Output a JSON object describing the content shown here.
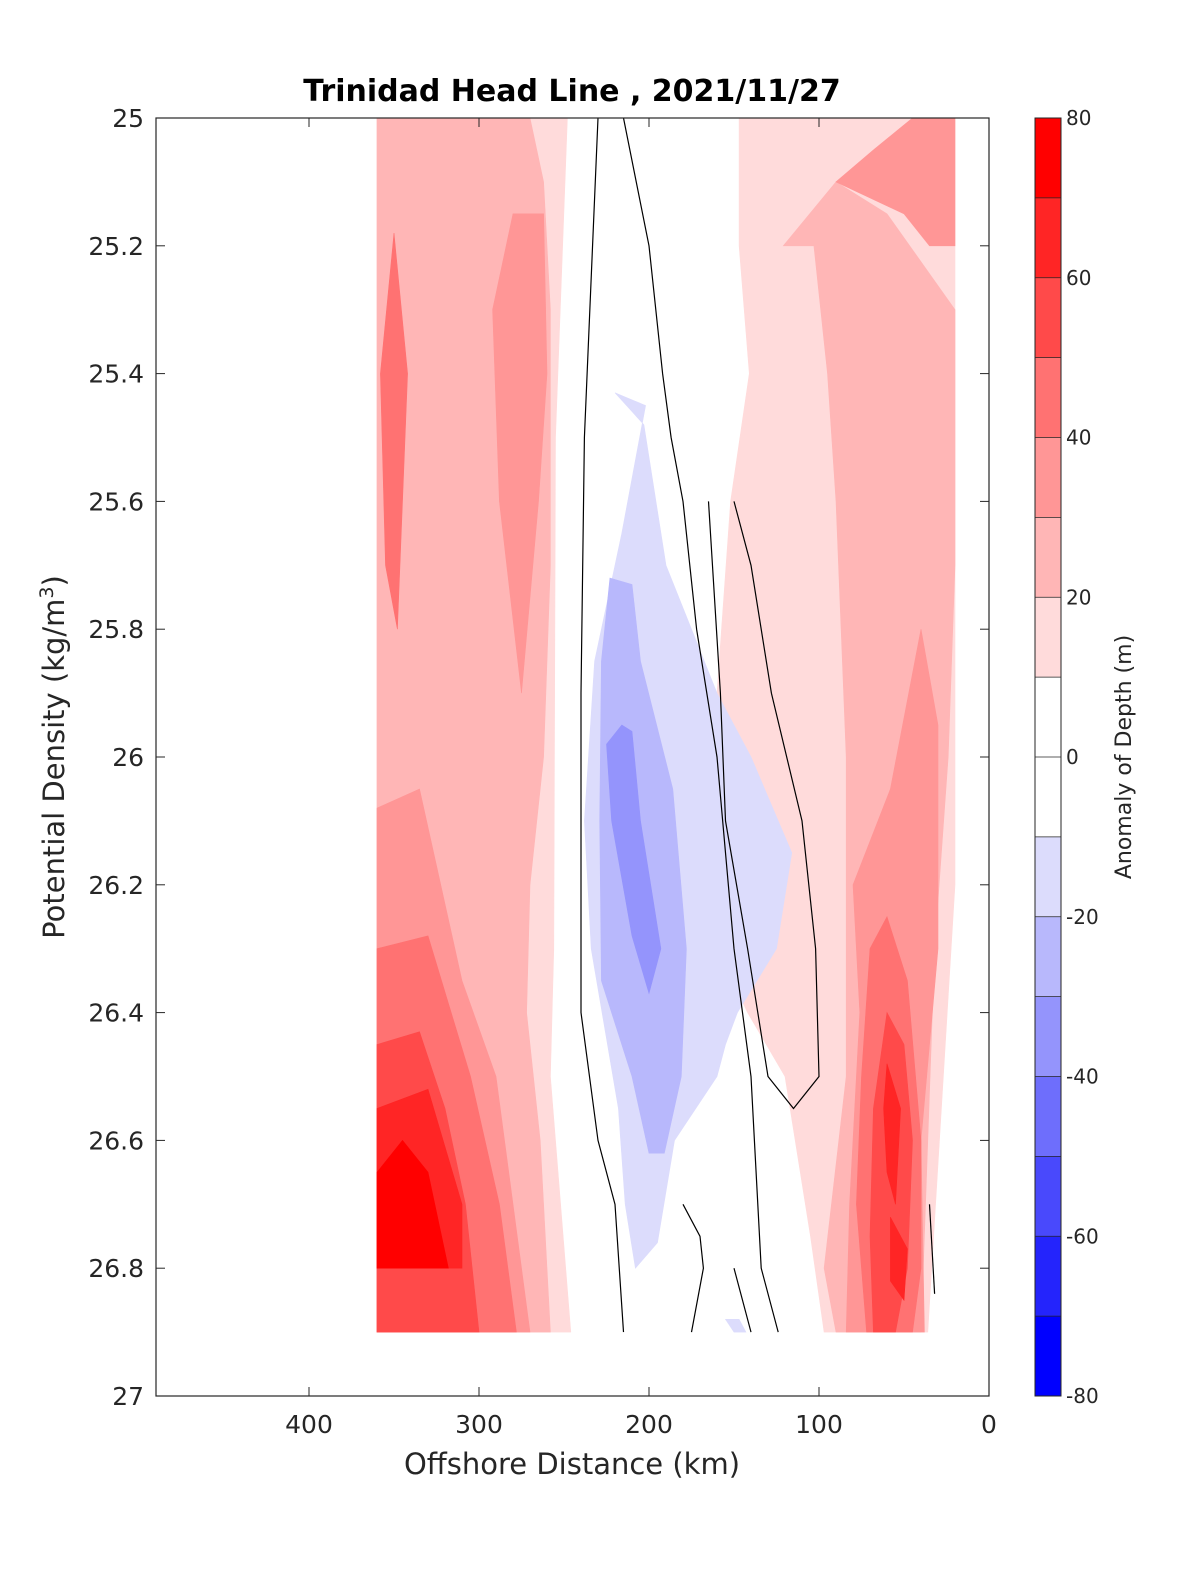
{
  "chart_data": {
    "type": "contour",
    "title": "Trinidad Head Line , 2021/11/27",
    "xlabel": "Offshore Distance (km)",
    "ylabel": "Potential Density (kg/m3)",
    "ylabel_parts": {
      "base": "Potential Density (kg/m",
      "sup": "3",
      "close": ")"
    },
    "xlim": [
      490,
      0
    ],
    "ylim": [
      25,
      27
    ],
    "x_reversed": true,
    "y_reversed": true,
    "x_ticks": [
      400,
      300,
      200,
      100,
      0
    ],
    "x_tick_labels": [
      "400",
      "300",
      "200",
      "100",
      "0"
    ],
    "y_ticks": [
      25,
      25.2,
      25.4,
      25.6,
      25.8,
      26,
      26.2,
      26.4,
      26.6,
      26.8,
      27
    ],
    "y_tick_labels": [
      "25",
      "25.2",
      "25.4",
      "25.6",
      "25.8",
      "26",
      "26.2",
      "26.4",
      "26.6",
      "26.8",
      "27"
    ],
    "grid": false,
    "data_extent": {
      "x": [
        360,
        20
      ],
      "y": [
        25,
        26.9
      ]
    },
    "colorbar": {
      "label": "Anomaly of Depth (m)",
      "range": [
        -80,
        80
      ],
      "step": 10,
      "tick_values": [
        80,
        60,
        40,
        20,
        0,
        -20,
        -40,
        -60,
        -80
      ],
      "tick_labels": [
        "80",
        "60",
        "40",
        "20",
        "0",
        "-20",
        "-40",
        "-60",
        "-80"
      ],
      "colors": [
        "#ff0000",
        "#ff2525",
        "#ff4a4a",
        "#ff7272",
        "#ff9696",
        "#ffb6b6",
        "#ffdbdb",
        "#ffffff",
        "#ffffff",
        "#dcdcfc",
        "#b8b8fc",
        "#9494fc",
        "#6e6efc",
        "#4949fc",
        "#2424fc",
        "#0000ff"
      ]
    },
    "contour_levels": [
      {
        "level": 10,
        "color": "#ffdbdb",
        "regions": [
          [
            [
              360,
              25
            ],
            [
              248,
              25
            ],
            [
              255,
              25.5
            ],
            [
              256,
              26.3
            ],
            [
              258,
              26.5
            ],
            [
              246,
              26.9
            ],
            [
              360,
              26.9
            ]
          ],
          [
            [
              147,
              25
            ],
            [
              20,
              25
            ],
            [
              20,
              26.2
            ],
            [
              36,
              26.9
            ],
            [
              97,
              26.9
            ],
            [
              105,
              26.75
            ],
            [
              120,
              26.5
            ],
            [
              142,
              26.4
            ],
            [
              160,
              26.3
            ],
            [
              160,
              25.9
            ],
            [
              152,
              25.6
            ],
            [
              141,
              25.4
            ],
            [
              147,
              25.2
            ]
          ]
        ]
      },
      {
        "level": 20,
        "color": "#ffb6b6",
        "regions": [
          [
            [
              360,
              25
            ],
            [
              270,
              25
            ],
            [
              262,
              25.1
            ],
            [
              258,
              25.3
            ],
            [
              258,
              25.7
            ],
            [
              262,
              26.0
            ],
            [
              270,
              26.2
            ],
            [
              272,
              26.4
            ],
            [
              264,
              26.6
            ],
            [
              258,
              26.9
            ],
            [
              360,
              26.9
            ]
          ],
          [
            [
              121,
              25.2
            ],
            [
              103,
              25.2
            ],
            [
              95,
              25.4
            ],
            [
              90,
              25.6
            ],
            [
              84,
              26
            ],
            [
              84,
              26.5
            ],
            [
              97,
              26.8
            ],
            [
              90,
              26.9
            ],
            [
              40,
              26.9
            ],
            [
              32,
              26.3
            ],
            [
              24,
              26
            ],
            [
              20,
              25.7
            ],
            [
              20,
              25.3
            ],
            [
              60,
              25.15
            ],
            [
              90,
              25.1
            ]
          ]
        ]
      },
      {
        "level": 30,
        "color": "#ff9696",
        "regions": [
          [
            [
              280,
              25.15
            ],
            [
              262,
              25.15
            ],
            [
              260,
              25.4
            ],
            [
              265,
              25.6
            ],
            [
              275,
              25.9
            ],
            [
              288,
              25.6
            ],
            [
              292,
              25.3
            ]
          ],
          [
            [
              360,
              26.08
            ],
            [
              335,
              26.05
            ],
            [
              310,
              26.35
            ],
            [
              290,
              26.5
            ],
            [
              275,
              26.8
            ],
            [
              270,
              26.9
            ],
            [
              360,
              26.9
            ]
          ],
          [
            [
              90,
              25.1
            ],
            [
              68,
              25.05
            ],
            [
              45,
              25.0
            ],
            [
              20,
              25.0
            ],
            [
              20,
              25.2
            ],
            [
              35,
              25.2
            ],
            [
              50,
              25.15
            ]
          ],
          [
            [
              80,
              26.2
            ],
            [
              58,
              26.05
            ],
            [
              40,
              25.8
            ],
            [
              30,
              25.95
            ],
            [
              30,
              26.3
            ],
            [
              40,
              26.6
            ],
            [
              38,
              26.9
            ],
            [
              84,
              26.9
            ],
            [
              82,
              26.7
            ],
            [
              76,
              26.4
            ]
          ]
        ]
      },
      {
        "level": 40,
        "color": "#ff7272",
        "regions": [
          [
            [
              350,
              25.18
            ],
            [
              342,
              25.4
            ],
            [
              348,
              25.8
            ],
            [
              355,
              25.7
            ],
            [
              358,
              25.4
            ]
          ],
          [
            [
              360,
              26.3
            ],
            [
              330,
              26.28
            ],
            [
              305,
              26.5
            ],
            [
              288,
              26.7
            ],
            [
              278,
              26.9
            ],
            [
              360,
              26.9
            ]
          ],
          [
            [
              70,
              26.3
            ],
            [
              60,
              26.25
            ],
            [
              48,
              26.35
            ],
            [
              40,
              26.6
            ],
            [
              40,
              26.8
            ],
            [
              45,
              26.9
            ],
            [
              72,
              26.9
            ],
            [
              78,
              26.7
            ],
            [
              75,
              26.5
            ]
          ]
        ]
      },
      {
        "level": 50,
        "color": "#ff4a4a",
        "regions": [
          [
            [
              360,
              26.45
            ],
            [
              335,
              26.43
            ],
            [
              320,
              26.55
            ],
            [
              308,
              26.7
            ],
            [
              300,
              26.9
            ],
            [
              360,
              26.9
            ]
          ],
          [
            [
              60,
              26.4
            ],
            [
              50,
              26.45
            ],
            [
              45,
              26.6
            ],
            [
              48,
              26.8
            ],
            [
              55,
              26.9
            ],
            [
              68,
              26.9
            ],
            [
              70,
              26.75
            ],
            [
              68,
              26.55
            ]
          ]
        ]
      },
      {
        "level": 60,
        "color": "#ff2525",
        "regions": [
          [
            [
              360,
              26.55
            ],
            [
              330,
              26.52
            ],
            [
              310,
              26.7
            ],
            [
              310,
              26.8
            ],
            [
              360,
              26.8
            ]
          ],
          [
            [
              60,
              26.48
            ],
            [
              52,
              26.55
            ],
            [
              55,
              26.7
            ],
            [
              60,
              26.65
            ],
            [
              62,
              26.55
            ]
          ],
          [
            [
              58,
              26.72
            ],
            [
              48,
              26.77
            ],
            [
              50,
              26.85
            ],
            [
              58,
              26.82
            ]
          ]
        ]
      },
      {
        "level": 70,
        "color": "#ff0000",
        "regions": [
          [
            [
              360,
              26.8
            ],
            [
              318,
              26.8
            ],
            [
              330,
              26.65
            ],
            [
              345,
              26.6
            ],
            [
              360,
              26.65
            ]
          ]
        ]
      },
      {
        "level": -10,
        "color": "#dcdcfc",
        "regions": [
          [
            [
              220,
              25.43
            ],
            [
              202,
              25.45
            ],
            [
              216,
              25.65
            ],
            [
              232,
              25.85
            ],
            [
              238,
              26.1
            ],
            [
              234,
              26.3
            ],
            [
              218,
              26.55
            ],
            [
              214,
              26.7
            ],
            [
              208,
              26.8
            ],
            [
              195,
              26.76
            ],
            [
              185,
              26.6
            ],
            [
              160,
              26.5
            ],
            [
              155,
              26.45
            ],
            [
              148,
              26.4
            ],
            [
              125,
              26.3
            ],
            [
              116,
              26.15
            ],
            [
              140,
              26.0
            ],
            [
              160,
              25.9
            ],
            [
              190,
              25.7
            ],
            [
              203,
              25.48
            ]
          ],
          [
            [
              155,
              26.88
            ],
            [
              150,
              26.9
            ],
            [
              148,
              26.9
            ],
            [
              143,
              26.9
            ],
            [
              147,
              26.88
            ]
          ]
        ]
      },
      {
        "level": -20,
        "color": "#b8b8fc",
        "regions": [
          [
            [
              223,
              25.72
            ],
            [
              210,
              25.73
            ],
            [
              205,
              25.85
            ],
            [
              186,
              26.05
            ],
            [
              178,
              26.3
            ],
            [
              181,
              26.5
            ],
            [
              191,
              26.62
            ],
            [
              200,
              26.62
            ],
            [
              210,
              26.5
            ],
            [
              228,
              26.35
            ],
            [
              229,
              26.1
            ],
            [
              228,
              25.85
            ]
          ]
        ]
      },
      {
        "level": -30,
        "color": "#9494fc",
        "regions": [
          [
            [
              216,
              25.95
            ],
            [
              210,
              25.96
            ],
            [
              205,
              26.1
            ],
            [
              193,
              26.3
            ],
            [
              200,
              26.37
            ],
            [
              210,
              26.28
            ],
            [
              222,
              26.1
            ],
            [
              225,
              25.98
            ]
          ]
        ]
      }
    ],
    "zero_contours": [
      [
        [
          230,
          25
        ],
        [
          238,
          25.5
        ],
        [
          240,
          25.9
        ],
        [
          240,
          26.4
        ],
        [
          230,
          26.6
        ],
        [
          220,
          26.7
        ],
        [
          215,
          26.9
        ]
      ],
      [
        [
          215,
          25
        ],
        [
          200,
          25.2
        ],
        [
          192,
          25.4
        ],
        [
          187,
          25.5
        ],
        [
          180,
          25.6
        ],
        [
          172,
          25.8
        ],
        [
          160,
          26
        ],
        [
          150,
          26.3
        ],
        [
          140,
          26.5
        ],
        [
          134,
          26.8
        ],
        [
          124,
          26.9
        ]
      ],
      [
        [
          165,
          25.6
        ],
        [
          158,
          25.9
        ],
        [
          155,
          26.1
        ],
        [
          142,
          26.3
        ],
        [
          130,
          26.5
        ],
        [
          115,
          26.55
        ],
        [
          100,
          26.5
        ],
        [
          102,
          26.3
        ],
        [
          110,
          26.1
        ],
        [
          128,
          25.9
        ],
        [
          140,
          25.7
        ],
        [
          150,
          25.6
        ]
      ],
      [
        [
          180,
          26.7
        ],
        [
          170,
          26.75
        ],
        [
          168,
          26.8
        ],
        [
          175,
          26.9
        ]
      ],
      [
        [
          150,
          26.8
        ],
        [
          140,
          26.9
        ]
      ],
      [
        [
          35,
          26.7
        ],
        [
          32,
          26.84
        ]
      ]
    ]
  }
}
